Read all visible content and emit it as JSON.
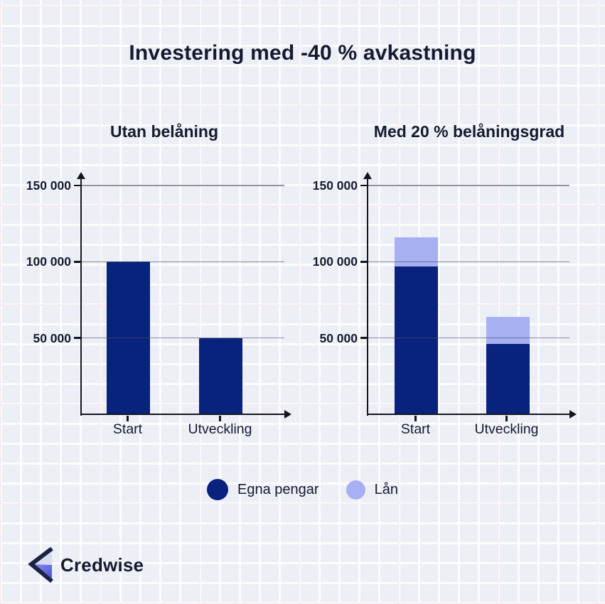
{
  "title": "Investering med -40 % avkastning",
  "chart_data": [
    {
      "type": "bar",
      "title": "Utan belåning",
      "categories": [
        "Start",
        "Utveckling"
      ],
      "series": [
        {
          "name": "Egna pengar",
          "values": [
            100000,
            50000
          ]
        }
      ],
      "ytick_values": [
        150000,
        100000,
        50000
      ],
      "ytick_labels": [
        "150 000",
        "100 000",
        "50 000"
      ],
      "ylim": [
        0,
        155000
      ],
      "grid": "horizontal",
      "legend_position": "bottom-shared"
    },
    {
      "type": "stacked-bar",
      "title": "Med 20 % belåningsgrad",
      "categories": [
        "Start",
        "Utveckling"
      ],
      "series": [
        {
          "name": "Egna pengar",
          "values": [
            97000,
            46000
          ]
        },
        {
          "name": "Lån",
          "values": [
            19000,
            18000
          ]
        }
      ],
      "values_estimated": true,
      "ytick_values": [
        150000,
        100000,
        50000
      ],
      "ytick_labels": [
        "150 000",
        "100 000",
        "50 000"
      ],
      "ylim": [
        0,
        155000
      ],
      "grid": "horizontal",
      "legend_position": "bottom-shared"
    }
  ],
  "legend": {
    "items": [
      {
        "label": "Egna pengar",
        "color": "#08227e"
      },
      {
        "label": "Lån",
        "color": "#a6b0f3"
      }
    ]
  },
  "logo": {
    "text": "Credwise"
  },
  "colors": {
    "background": "#edeff6",
    "text": "#151a2f",
    "bar_dark": "#08227e",
    "bar_light": "#a6b0f3",
    "axis": "#14161f",
    "logo_light": "#d9dbf5",
    "logo_blue_1": "#868cef",
    "logo_blue_2": "#4a52d8",
    "logo_chevron": "#1d2342"
  }
}
